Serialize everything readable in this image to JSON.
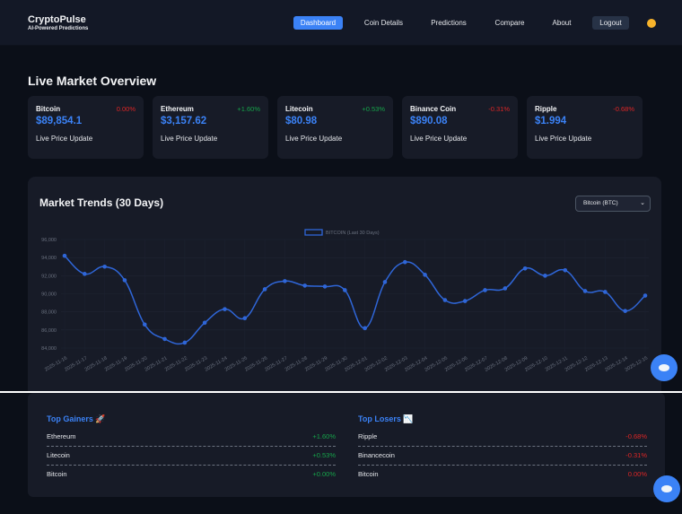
{
  "navbar": {
    "brand_title": "CryptoPulse",
    "brand_subtitle": "AI-Powered Predictions",
    "items": [
      {
        "label": "Dashboard",
        "active": true
      },
      {
        "label": "Coin Details"
      },
      {
        "label": "Predictions"
      },
      {
        "label": "Compare"
      },
      {
        "label": "About"
      }
    ],
    "logout_label": "Logout",
    "theme_icon": "sun-icon"
  },
  "overview": {
    "title": "Live Market Overview",
    "cards": [
      {
        "name": "Bitcoin",
        "change": "0.00%",
        "direction": "neg",
        "price": "$89,854.1",
        "subtitle": "Live Price Update"
      },
      {
        "name": "Ethereum",
        "change": "+1.60%",
        "direction": "pos",
        "price": "$3,157.62",
        "subtitle": "Live Price Update"
      },
      {
        "name": "Litecoin",
        "change": "+0.53%",
        "direction": "pos",
        "price": "$80.98",
        "subtitle": "Live Price Update"
      },
      {
        "name": "Binance Coin",
        "change": "-0.31%",
        "direction": "neg",
        "price": "$890.08",
        "subtitle": "Live Price Update"
      },
      {
        "name": "Ripple",
        "change": "-0.68%",
        "direction": "neg",
        "price": "$1.994",
        "subtitle": "Live Price Update"
      }
    ]
  },
  "trends": {
    "title": "Market Trends (30 Days)",
    "selected_coin": "Bitcoin (BTC)"
  },
  "chart_data": {
    "type": "line",
    "title": "Market Trends (30 Days)",
    "legend": [
      "BITCOIN (Last 30 Days)"
    ],
    "legend_position": "top",
    "xlabel": "",
    "ylabel": "",
    "ylim": [
      84000,
      96000
    ],
    "yticks": [
      "96,000",
      "94,000",
      "92,000",
      "90,000",
      "88,000",
      "86,000",
      "84,000"
    ],
    "grid": true,
    "color": "#2f66d8",
    "x": [
      "2025-11-16",
      "2025-11-17",
      "2025-11-18",
      "2025-11-19",
      "2025-11-20",
      "2025-11-21",
      "2025-11-22",
      "2025-11-23",
      "2025-11-24",
      "2025-11-25",
      "2025-11-26",
      "2025-11-27",
      "2025-11-28",
      "2025-11-29",
      "2025-11-30",
      "2025-12-01",
      "2025-12-02",
      "2025-12-03",
      "2025-12-04",
      "2025-12-05",
      "2025-12-06",
      "2025-12-07",
      "2025-12-08",
      "2025-12-09",
      "2025-12-10",
      "2025-12-11",
      "2025-12-12",
      "2025-12-13",
      "2025-12-14",
      "2025-12-15"
    ],
    "series": [
      {
        "name": "BITCOIN (Last 30 Days)",
        "values": [
          94200,
          92200,
          93000,
          91500,
          86600,
          85000,
          84600,
          86800,
          88300,
          87300,
          90500,
          91400,
          90900,
          90800,
          90400,
          86200,
          91300,
          93500,
          92100,
          89300,
          89200,
          90400,
          90600,
          92800,
          92000,
          92600,
          90300,
          90200,
          88100,
          89800
        ]
      }
    ]
  },
  "movers": {
    "gainers_title": "Top Gainers",
    "gainers_icon": "rocket-icon",
    "gainers": [
      {
        "name": "Ethereum",
        "change": "+1.60%"
      },
      {
        "name": "Litecoin",
        "change": "+0.53%"
      },
      {
        "name": "Bitcoin",
        "change": "+0.00%"
      }
    ],
    "losers_title": "Top Losers",
    "losers_icon": "chart-down-icon",
    "losers": [
      {
        "name": "Ripple",
        "change": "-0.68%"
      },
      {
        "name": "Binancecoin",
        "change": "-0.31%"
      },
      {
        "name": "Bitcoin",
        "change": "0.00%"
      }
    ]
  },
  "chat_button_icon": "chat-bubble-icon"
}
